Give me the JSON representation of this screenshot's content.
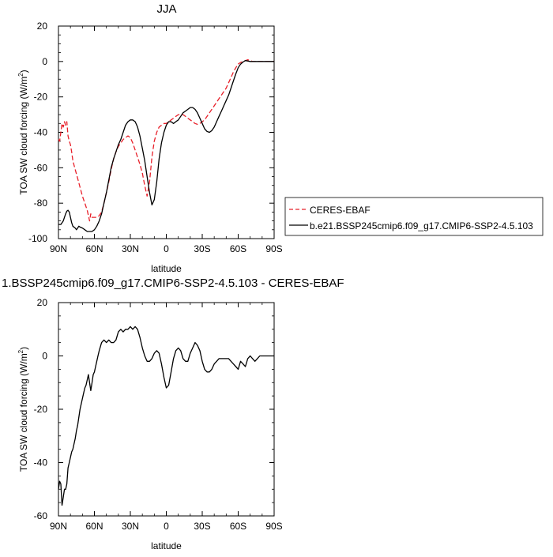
{
  "top_title": "JJA",
  "bottom_title": "1.BSSP245cmip6.f09_g17.CMIP6-SSP2-4.5.103 - CERES-EBAF",
  "legend": {
    "entries": [
      {
        "label": "CERES-EBAF",
        "color": "#e8202a",
        "style": "dashed"
      },
      {
        "label": "b.e21.BSSP245cmip6.f09_g17.CMIP6-SSP2-4.5.103",
        "color": "#000000",
        "style": "solid"
      }
    ]
  },
  "chart_data": [
    {
      "type": "line",
      "title": "JJA",
      "xlabel": "latitude",
      "ylabel": "TOA SW cloud forcing (W/m",
      "ylabel_sup": "2",
      "ylabel_close": ")",
      "xlim": [
        90,
        -90
      ],
      "ylim": [
        -100,
        20
      ],
      "xticks": [
        90,
        60,
        30,
        0,
        -30,
        -60,
        -90
      ],
      "xticklabels": [
        "90N",
        "60N",
        "30N",
        "0",
        "30S",
        "60S",
        "90S"
      ],
      "yticks": [
        20,
        0,
        -20,
        -40,
        -60,
        -80,
        -100
      ],
      "yticklabels": [
        "20",
        "0",
        "-20",
        "-40",
        "-60",
        "-80",
        "-100"
      ],
      "series": [
        {
          "name": "CERES-EBAF",
          "color": "#e8202a",
          "dashed": true,
          "x": [
            90,
            89,
            88,
            87,
            86,
            85,
            84,
            83,
            82,
            81,
            80,
            79,
            78,
            76,
            74,
            72,
            70,
            68,
            66,
            65,
            64,
            63,
            62,
            60,
            58,
            56,
            54,
            52,
            50,
            48,
            46,
            44,
            42,
            40,
            38,
            36,
            34,
            32,
            30,
            28,
            26,
            24,
            22,
            20,
            18,
            16,
            14,
            12,
            10,
            8,
            6,
            4,
            2,
            0,
            -2,
            -4,
            -6,
            -8,
            -10,
            -12,
            -14,
            -16,
            -18,
            -20,
            -22,
            -24,
            -26,
            -28,
            -30,
            -32,
            -34,
            -36,
            -38,
            -40,
            -42,
            -44,
            -46,
            -48,
            -50,
            -52,
            -54,
            -56,
            -58,
            -60,
            -62,
            -64,
            -66,
            -68,
            -70,
            -72,
            -74,
            -76,
            -78,
            -80,
            -82,
            -84,
            -86,
            -88,
            -90
          ],
          "y": [
            -44,
            -45,
            -40,
            -35,
            -37,
            -34,
            -36,
            -34,
            -42,
            -45,
            -47,
            -51,
            -56,
            -61,
            -66,
            -71,
            -76,
            -80,
            -84,
            -87,
            -90,
            -86,
            -88,
            -88,
            -88,
            -87,
            -85,
            -80,
            -74,
            -68,
            -61,
            -55,
            -51,
            -48,
            -46,
            -44,
            -43,
            -42,
            -43,
            -46,
            -50,
            -54,
            -58,
            -63,
            -70,
            -76,
            -68,
            -54,
            -45,
            -40,
            -37,
            -36,
            -35,
            -35,
            -34,
            -33,
            -32,
            -31,
            -30,
            -30,
            -30,
            -31,
            -32,
            -33,
            -34,
            -35,
            -35.5,
            -35,
            -34,
            -33,
            -31,
            -29,
            -27,
            -25,
            -23,
            -21,
            -19,
            -17,
            -15,
            -12,
            -9,
            -6,
            -3.5,
            -1.5,
            -0.5,
            0,
            0.5,
            1,
            0.5,
            0,
            0,
            0,
            0,
            0,
            0,
            0,
            0,
            0,
            0
          ]
        },
        {
          "name": "b.e21.BSSP245cmip6.f09_g17.CMIP6-SSP2-4.5.103",
          "color": "#000000",
          "dashed": false,
          "x": [
            90,
            88,
            86,
            85,
            84,
            83,
            82,
            81,
            80,
            79,
            78,
            76,
            75,
            74,
            73,
            72,
            70,
            68,
            66,
            64,
            62,
            61,
            60,
            58,
            56,
            54,
            52,
            50,
            48,
            46,
            44,
            42,
            40,
            38,
            36,
            34,
            32,
            30,
            28,
            26,
            24,
            22,
            20,
            18,
            16,
            14,
            12,
            10,
            8,
            6,
            4,
            2,
            0,
            -2,
            -4,
            -6,
            -8,
            -10,
            -12,
            -14,
            -16,
            -18,
            -20,
            -22,
            -24,
            -26,
            -28,
            -30,
            -32,
            -34,
            -36,
            -38,
            -40,
            -42,
            -44,
            -46,
            -48,
            -50,
            -52,
            -54,
            -56,
            -58,
            -60,
            -62,
            -64,
            -66,
            -68,
            -70,
            -72,
            -74,
            -76,
            -78,
            -80,
            -82,
            -84,
            -86,
            -88,
            -90
          ],
          "y": [
            -92,
            -92,
            -90,
            -88,
            -86,
            -84.5,
            -84,
            -85,
            -88,
            -91,
            -93,
            -94,
            -95,
            -94,
            -93,
            -93.5,
            -94,
            -95,
            -96,
            -96,
            -96,
            -95.5,
            -95,
            -93,
            -90,
            -86,
            -80,
            -74,
            -67,
            -60,
            -55,
            -51,
            -47,
            -44,
            -40,
            -36,
            -34,
            -33,
            -33,
            -34,
            -37,
            -42,
            -49,
            -56,
            -65,
            -74,
            -81,
            -78,
            -68,
            -55,
            -46,
            -40,
            -36,
            -34,
            -34,
            -35,
            -34,
            -33,
            -31,
            -29,
            -28,
            -27,
            -26,
            -26,
            -27,
            -29,
            -32,
            -35,
            -38,
            -39.5,
            -40,
            -39,
            -37,
            -34,
            -31,
            -28,
            -25,
            -22,
            -19,
            -15,
            -11,
            -7,
            -3.5,
            -1.5,
            -0.3,
            0.5,
            0.3,
            0,
            0,
            0,
            0,
            0,
            0,
            0,
            0,
            0,
            0,
            0
          ]
        }
      ]
    },
    {
      "type": "line",
      "title": "1.BSSP245cmip6.f09_g17.CMIP6-SSP2-4.5.103 - CERES-EBAF",
      "xlabel": "latitude",
      "ylabel": "TOA SW cloud forcing (W/m",
      "ylabel_sup": "2",
      "ylabel_close": ")",
      "xlim": [
        90,
        -90
      ],
      "ylim": [
        -60,
        20
      ],
      "xticks": [
        90,
        60,
        30,
        0,
        -30,
        -60,
        -90
      ],
      "xticklabels": [
        "90N",
        "60N",
        "30N",
        "0",
        "30S",
        "60S",
        "90S"
      ],
      "yticks": [
        20,
        0,
        -20,
        -40,
        -60
      ],
      "yticklabels": [
        "20",
        "0",
        "-20",
        "-40",
        "-60"
      ],
      "series": [
        {
          "name": "",
          "color": "#000000",
          "dashed": false,
          "x": [
            90,
            89,
            88,
            87,
            86,
            85,
            84,
            83,
            82,
            81,
            80,
            79,
            78,
            77,
            76,
            75,
            74,
            73,
            72,
            71,
            70,
            69,
            68,
            67,
            66,
            65,
            64,
            63,
            62,
            61,
            60,
            59,
            58,
            57,
            56,
            54,
            52,
            50,
            48,
            46,
            44,
            42,
            40,
            38,
            36,
            34,
            32,
            30,
            28,
            26,
            24,
            22,
            20,
            18,
            16,
            14,
            12,
            10,
            8,
            6,
            4,
            2,
            0,
            -2,
            -4,
            -6,
            -8,
            -10,
            -12,
            -14,
            -16,
            -18,
            -20,
            -22,
            -24,
            -26,
            -28,
            -30,
            -32,
            -34,
            -36,
            -38,
            -40,
            -42,
            -44,
            -46,
            -48,
            -50,
            -52,
            -54,
            -56,
            -58,
            -60,
            -62,
            -64,
            -66,
            -68,
            -70,
            -72,
            -74,
            -76,
            -78,
            -80,
            -82,
            -84,
            -86,
            -88,
            -90
          ],
          "y": [
            -50,
            -47,
            -48,
            -56,
            -53,
            -50,
            -50,
            -48,
            -42,
            -40,
            -38,
            -36,
            -35,
            -33,
            -31,
            -28,
            -26,
            -23,
            -20,
            -18,
            -16,
            -14,
            -12,
            -11,
            -9,
            -7,
            -10,
            -13,
            -10,
            -7,
            -6,
            -4,
            -2,
            0,
            2,
            5,
            6,
            5,
            6,
            5,
            5,
            6,
            9,
            10,
            9,
            10,
            10,
            11,
            10,
            11,
            10,
            7,
            3,
            0,
            -2,
            -2,
            -1,
            1,
            2,
            1,
            -3,
            -8,
            -12,
            -11,
            -6,
            -1,
            2,
            3,
            2,
            -1,
            -2,
            -2,
            1,
            3,
            5,
            4,
            2,
            -2,
            -5,
            -6,
            -6,
            -5,
            -3,
            -2,
            -1,
            -1,
            -1,
            -1,
            -1,
            -2,
            -3,
            -4,
            -5,
            -2,
            -3,
            -4,
            -1,
            0,
            -1,
            -2,
            -1,
            0,
            0,
            0,
            0,
            0,
            0,
            0
          ]
        }
      ]
    }
  ]
}
